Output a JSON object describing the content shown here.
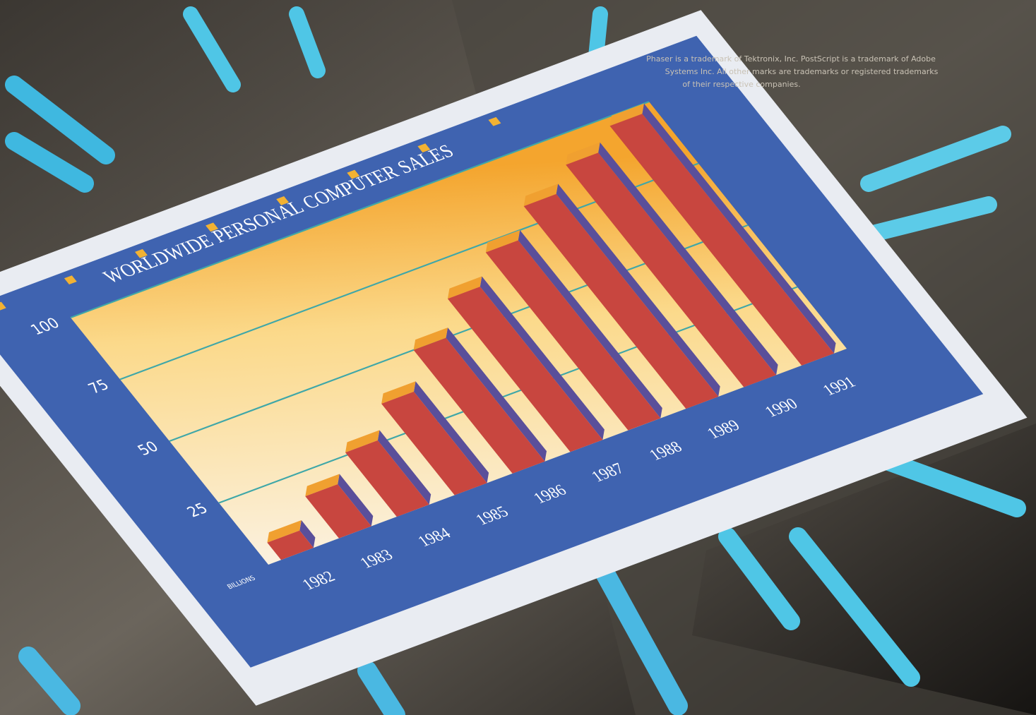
{
  "chart_data": {
    "type": "bar",
    "title": "WORLDWIDE PERSONAL COMPUTER SALES",
    "y_label": "BILLIONS",
    "categories": [
      "1982",
      "1983",
      "1984",
      "1985",
      "1986",
      "1987",
      "1988",
      "1989",
      "1990",
      "1991"
    ],
    "values": [
      7,
      17,
      26,
      37,
      50,
      62,
      72,
      82,
      90,
      97
    ],
    "color": "#c8463f",
    "ylim": [
      0,
      100
    ],
    "yticks": [
      25,
      50,
      75,
      100
    ],
    "grid": true
  },
  "caption": [
    "Phaser is a trademark of Tektronix, Inc. PostScript is a trademark of Adobe",
    "Systems Inc. All other marks are trademarks or registered trademarks",
    "of their respective companies."
  ]
}
